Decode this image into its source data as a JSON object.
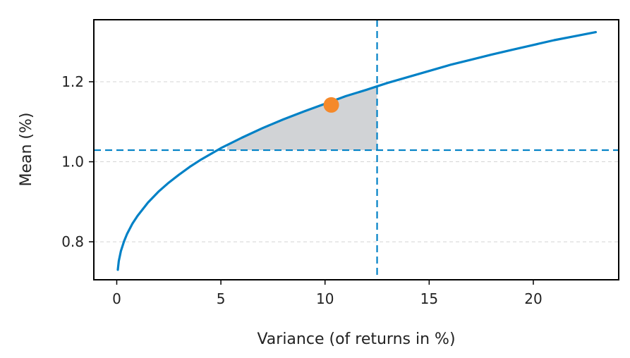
{
  "chart_data": {
    "type": "line",
    "title": "",
    "xlabel": "Variance (of returns in %)",
    "ylabel": "Mean (%)",
    "xlim": [
      -1.1,
      24.1
    ],
    "ylim": [
      0.705,
      1.355
    ],
    "xticks": [
      0,
      5,
      10,
      15,
      20
    ],
    "xtick_labels": [
      "0",
      "5",
      "10",
      "15",
      "20"
    ],
    "yticks": [
      0.8,
      1.0,
      1.2
    ],
    "ytick_labels": [
      "0.8",
      "1.0",
      "1.2"
    ],
    "grid": "horizontal dashed",
    "series": [
      {
        "x": [
          0.05,
          0.1,
          0.2,
          0.35,
          0.5,
          0.75,
          1.0,
          1.5,
          2.0,
          2.5,
          3.0,
          3.5,
          4.0,
          5.0,
          6.0,
          7.0,
          8.0,
          9.0,
          10.0,
          11.0,
          12.0,
          13.0,
          14.0,
          15.0,
          16.0,
          17.0,
          18.0,
          19.0,
          20.0,
          21.0,
          22.0,
          23.0
        ],
        "y": [
          0.73,
          0.752,
          0.777,
          0.801,
          0.82,
          0.845,
          0.865,
          0.898,
          0.925,
          0.948,
          0.968,
          0.987,
          1.004,
          1.034,
          1.06,
          1.084,
          1.106,
          1.126,
          1.145,
          1.164,
          1.18,
          1.197,
          1.212,
          1.227,
          1.242,
          1.255,
          1.268,
          1.28,
          1.292,
          1.304,
          1.314,
          1.324
        ],
        "color": "#0081c6"
      }
    ],
    "point": {
      "x": 10.3,
      "y": 1.142,
      "color": "#f5892a"
    },
    "vline": {
      "x": 12.5,
      "color": "#0081c6"
    },
    "hline": {
      "y": 1.029,
      "color": "#0081c6"
    },
    "shaded_region": {
      "x_from": 5.3,
      "x_to": 12.5,
      "y_floor": 1.029,
      "color": "#d1d3d6"
    }
  }
}
